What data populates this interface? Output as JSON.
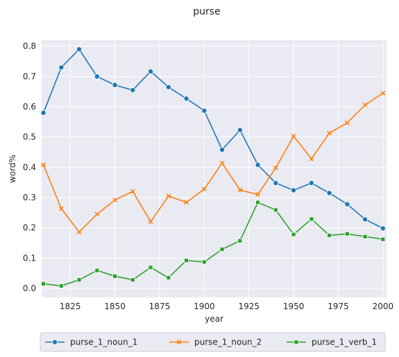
{
  "chart_data": {
    "type": "line",
    "title": "purse",
    "xlabel": "year",
    "ylabel": "word%",
    "xlim": [
      1809,
      2002
    ],
    "ylim": [
      -0.03,
      0.82
    ],
    "x_ticks": [
      1825,
      1850,
      1875,
      1900,
      1925,
      1950,
      1975,
      2000
    ],
    "y_ticks": [
      0.0,
      0.1,
      0.2,
      0.3,
      0.4,
      0.5,
      0.6,
      0.7,
      0.8
    ],
    "x_tick_labels": [
      "1825",
      "1850",
      "1875",
      "1900",
      "1925",
      "1950",
      "1975",
      "2000"
    ],
    "y_tick_labels": [
      "0.0",
      "0.1",
      "0.2",
      "0.3",
      "0.4",
      "0.5",
      "0.6",
      "0.7",
      "0.8"
    ],
    "grid": true,
    "background": "#eaeaf2",
    "legend_position": "bottom-center",
    "x": [
      1810,
      1820,
      1830,
      1840,
      1850,
      1860,
      1870,
      1880,
      1890,
      1900,
      1910,
      1920,
      1930,
      1940,
      1950,
      1960,
      1970,
      1980,
      1990,
      2000
    ],
    "series": [
      {
        "name": "purse_1_noun_1",
        "color": "#1f77b4",
        "marker": "circle",
        "values": [
          0.58,
          0.73,
          0.79,
          0.7,
          0.672,
          0.655,
          0.717,
          0.665,
          0.627,
          0.587,
          0.458,
          0.523,
          0.408,
          0.348,
          0.324,
          0.348,
          0.315,
          0.278,
          0.228,
          0.198
        ]
      },
      {
        "name": "purse_1_noun_2",
        "color": "#ff7f0e",
        "marker": "x",
        "values": [
          0.408,
          0.263,
          0.186,
          0.245,
          0.292,
          0.32,
          0.22,
          0.305,
          0.284,
          0.328,
          0.414,
          0.325,
          0.31,
          0.398,
          0.503,
          0.428,
          0.513,
          0.547,
          0.606,
          0.645
        ]
      },
      {
        "name": "purse_1_verb_1",
        "color": "#2ca02c",
        "marker": "square",
        "values": [
          0.015,
          0.008,
          0.028,
          0.059,
          0.04,
          0.028,
          0.069,
          0.035,
          0.092,
          0.087,
          0.129,
          0.157,
          0.284,
          0.259,
          0.178,
          0.229,
          0.175,
          0.18,
          0.171,
          0.162
        ]
      }
    ]
  }
}
